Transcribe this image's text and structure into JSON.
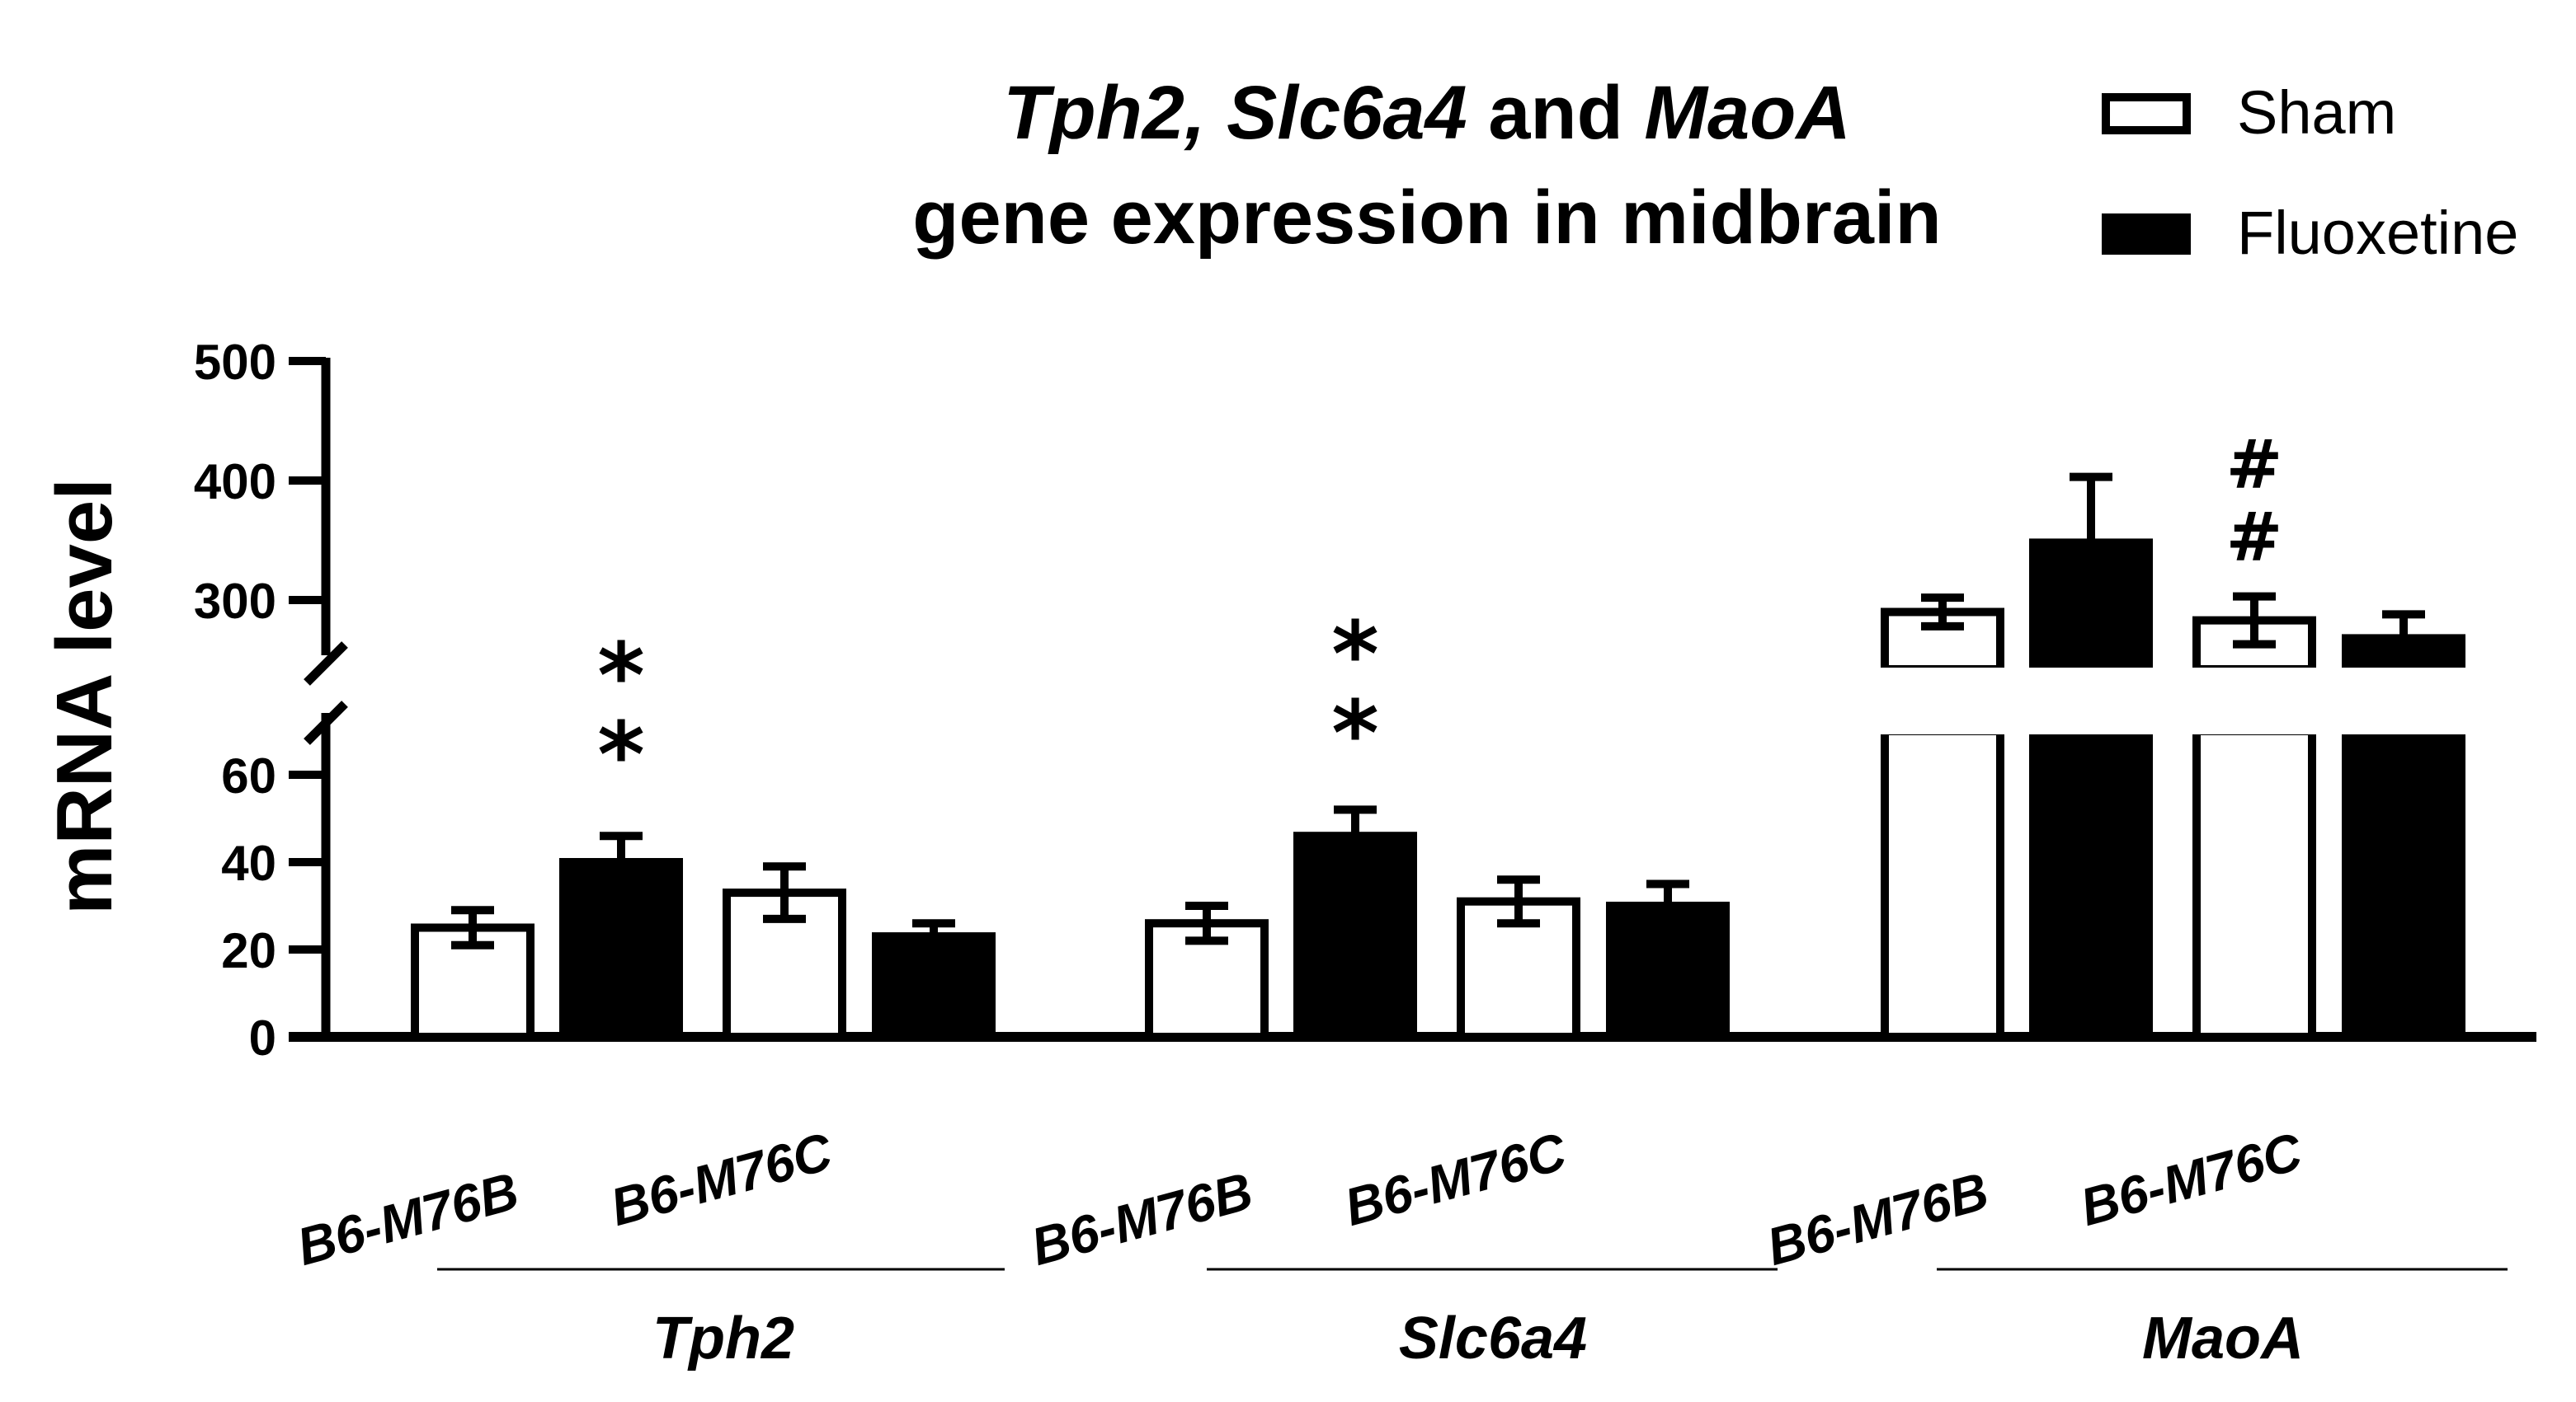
{
  "chart_data": {
    "type": "bar",
    "title": {
      "line1": [
        {
          "text": "Tph2, Slc6a4",
          "italic": true
        },
        {
          "text": " and ",
          "italic": false
        },
        {
          "text": "MaoA",
          "italic": true
        }
      ],
      "line2": "gene expression in midbrain"
    },
    "ylabel": "mRNA level",
    "y_axis": {
      "break": true,
      "lower_segment": {
        "range": [
          0,
          70
        ],
        "ticks": [
          "0",
          "20",
          "40",
          "60"
        ],
        "tick_values": [
          0,
          20,
          40,
          60
        ]
      },
      "upper_segment": {
        "range": [
          250,
          500
        ],
        "ticks": [
          "300",
          "400",
          "500"
        ],
        "tick_values": [
          300,
          400,
          500
        ]
      }
    },
    "legend": {
      "position": "top-right",
      "entries": [
        {
          "name": "Sham",
          "fill": "#ffffff"
        },
        {
          "name": "Fluoxetine",
          "fill": "#000000"
        }
      ]
    },
    "colors": {
      "sham": "#ffffff",
      "fluoxetine": "#000000",
      "stroke": "#000000"
    },
    "groups": [
      {
        "gene": "Tph2",
        "strains": [
          "B6-M76B",
          "B6-M76C"
        ],
        "bars": [
          {
            "strain": "B6-M76B",
            "treatment": "Sham",
            "value": 25,
            "error": 4
          },
          {
            "strain": "B6-M76B",
            "treatment": "Fluoxetine",
            "value": 40,
            "error": 6,
            "annotation": "**"
          },
          {
            "strain": "B6-M76C",
            "treatment": "Sham",
            "value": 33,
            "error": 6
          },
          {
            "strain": "B6-M76C",
            "treatment": "Fluoxetine",
            "value": 23,
            "error": 3
          }
        ]
      },
      {
        "gene": "Slc6a4",
        "strains": [
          "B6-M76B",
          "B6-M76C"
        ],
        "bars": [
          {
            "strain": "B6-M76B",
            "treatment": "Sham",
            "value": 26,
            "error": 4
          },
          {
            "strain": "B6-M76B",
            "treatment": "Fluoxetine",
            "value": 46,
            "error": 6,
            "annotation": "**"
          },
          {
            "strain": "B6-M76C",
            "treatment": "Sham",
            "value": 31,
            "error": 5
          },
          {
            "strain": "B6-M76C",
            "treatment": "Fluoxetine",
            "value": 30,
            "error": 5
          }
        ]
      },
      {
        "gene": "MaoA",
        "strains": [
          "B6-M76B",
          "B6-M76C"
        ],
        "bars": [
          {
            "strain": "B6-M76B",
            "treatment": "Sham",
            "value": 290,
            "error": 12
          },
          {
            "strain": "B6-M76B",
            "treatment": "Fluoxetine",
            "value": 348,
            "error": 55
          },
          {
            "strain": "B6-M76C",
            "treatment": "Sham",
            "value": 283,
            "error": 20,
            "annotation": "##"
          },
          {
            "strain": "B6-M76C",
            "treatment": "Fluoxetine",
            "value": 268,
            "error": 20
          }
        ]
      }
    ]
  }
}
